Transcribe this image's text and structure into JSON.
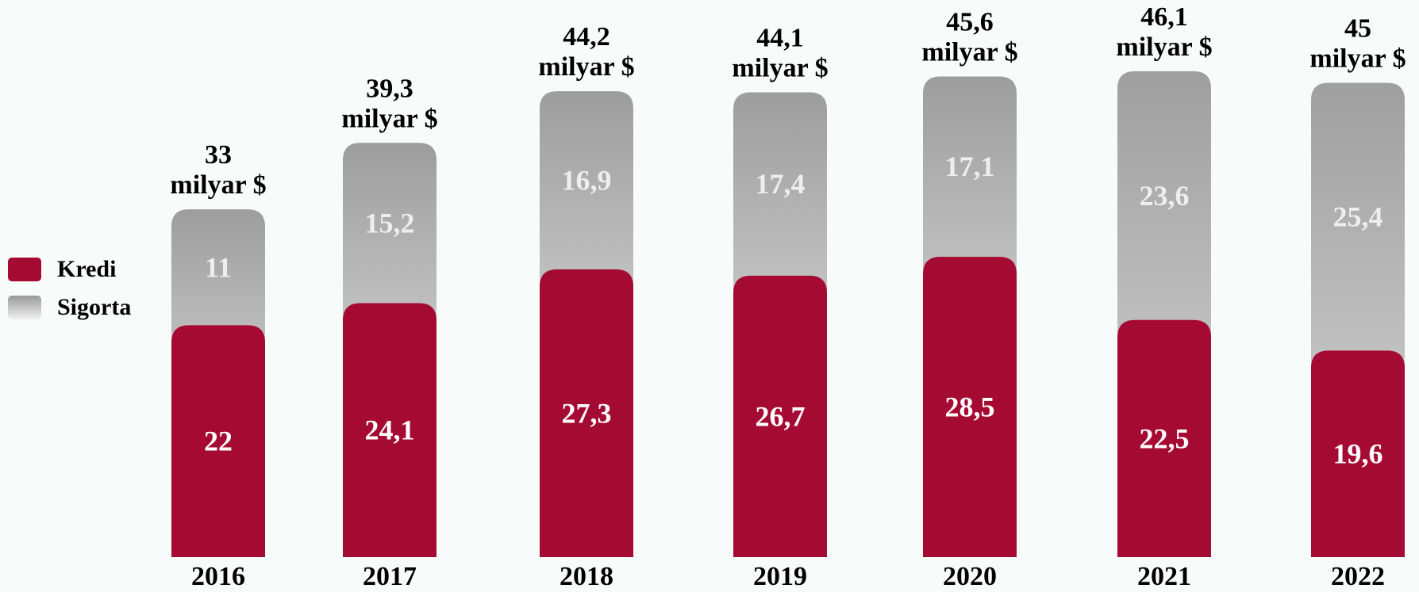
{
  "chart_data": {
    "type": "bar",
    "stacked": true,
    "categories": [
      "2016",
      "2017",
      "2018",
      "2019",
      "2020",
      "2021",
      "2022"
    ],
    "series": [
      {
        "name": "Kredi",
        "values": [
          "22",
          "24,1",
          "27,3",
          "26,7",
          "28,5",
          "22,5",
          "19,6"
        ],
        "numeric": [
          22,
          24.1,
          27.3,
          26.7,
          28.5,
          22.5,
          19.6
        ],
        "color": "#a50a33"
      },
      {
        "name": "Sigorta",
        "values": [
          "11",
          "15,2",
          "16,9",
          "17,4",
          "17,1",
          "23,6",
          "25,4"
        ],
        "numeric": [
          11,
          15.2,
          16.9,
          17.4,
          17.1,
          23.6,
          25.4
        ],
        "color": "#9e9e9e"
      }
    ],
    "totals": [
      "33",
      "39,3",
      "44,2",
      "44,1",
      "45,6",
      "46,1",
      "45"
    ],
    "total_unit": "milyar $",
    "title": "",
    "xlabel": "",
    "ylabel": "",
    "legend": "left"
  }
}
